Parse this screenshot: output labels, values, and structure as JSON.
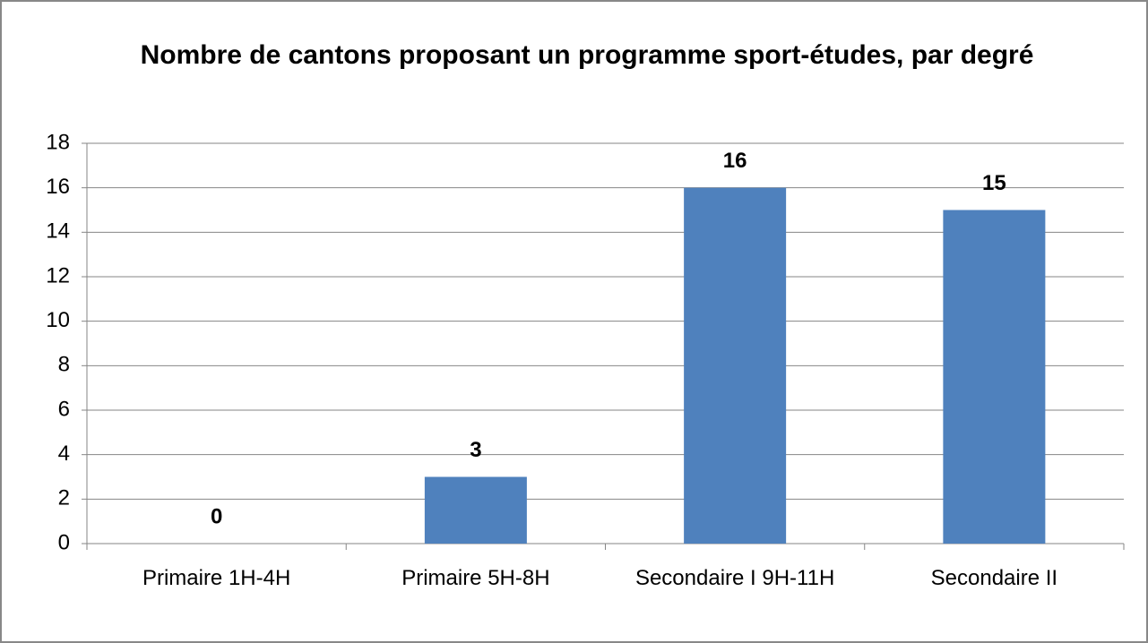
{
  "chart_data": {
    "type": "bar",
    "title": "Nombre de cantons proposant un programme sport-études, par degré",
    "categories": [
      "Primaire 1H-4H",
      "Primaire 5H-8H",
      "Secondaire I 9H-11H",
      "Secondaire II"
    ],
    "values": [
      0,
      3,
      16,
      15
    ],
    "color": "#4f81bd",
    "ylim": [
      0,
      18
    ],
    "yticks": [
      0,
      2,
      4,
      6,
      8,
      10,
      12,
      14,
      16,
      18
    ],
    "grid": true
  }
}
